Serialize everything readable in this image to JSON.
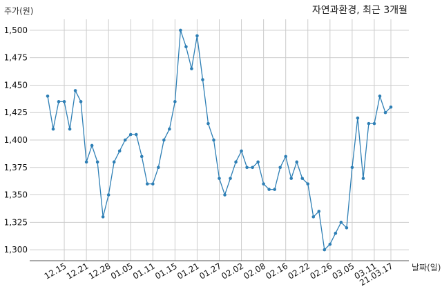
{
  "chart_data": {
    "type": "line",
    "title": "자연과환경, 최근 3개월",
    "ylabel": "주가(원)",
    "xlabel": "날짜(일)",
    "ylim": [
      1290,
      1510
    ],
    "yticks": [
      1300,
      1325,
      1350,
      1375,
      1400,
      1425,
      1450,
      1475,
      1500
    ],
    "ytick_labels": [
      "1,300",
      "1,325",
      "1,350",
      "1,375",
      "1,400",
      "1,425",
      "1,450",
      "1,475",
      "1,500"
    ],
    "grid": true,
    "color": "#2e7fb5",
    "x_ticks": [
      {
        "i": 3,
        "label": "12.15"
      },
      {
        "i": 7,
        "label": "12.21"
      },
      {
        "i": 11,
        "label": "12.28"
      },
      {
        "i": 15,
        "label": "01.05"
      },
      {
        "i": 19,
        "label": "01.11"
      },
      {
        "i": 23,
        "label": "01.15"
      },
      {
        "i": 27,
        "label": "01.21"
      },
      {
        "i": 31,
        "label": "01.27"
      },
      {
        "i": 35,
        "label": "02.02"
      },
      {
        "i": 39,
        "label": "02.08"
      },
      {
        "i": 43,
        "label": "02.16"
      },
      {
        "i": 47,
        "label": "02.22"
      },
      {
        "i": 51,
        "label": "02.26"
      },
      {
        "i": 55,
        "label": "03.05"
      },
      {
        "i": 59,
        "label": "03.11"
      },
      {
        "i": 62,
        "label": "21.03.17"
      }
    ],
    "values": [
      1440,
      1410,
      1435,
      1435,
      1410,
      1445,
      1435,
      1380,
      1395,
      1380,
      1330,
      1350,
      1380,
      1390,
      1400,
      1405,
      1405,
      1385,
      1360,
      1360,
      1375,
      1400,
      1410,
      1435,
      1500,
      1485,
      1465,
      1495,
      1455,
      1415,
      1400,
      1365,
      1350,
      1365,
      1380,
      1390,
      1375,
      1375,
      1380,
      1360,
      1355,
      1355,
      1375,
      1385,
      1365,
      1380,
      1365,
      1360,
      1330,
      1335,
      1300,
      1305,
      1315,
      1325,
      1320,
      1375,
      1420,
      1365,
      1415,
      1415,
      1440,
      1425,
      1430
    ]
  }
}
